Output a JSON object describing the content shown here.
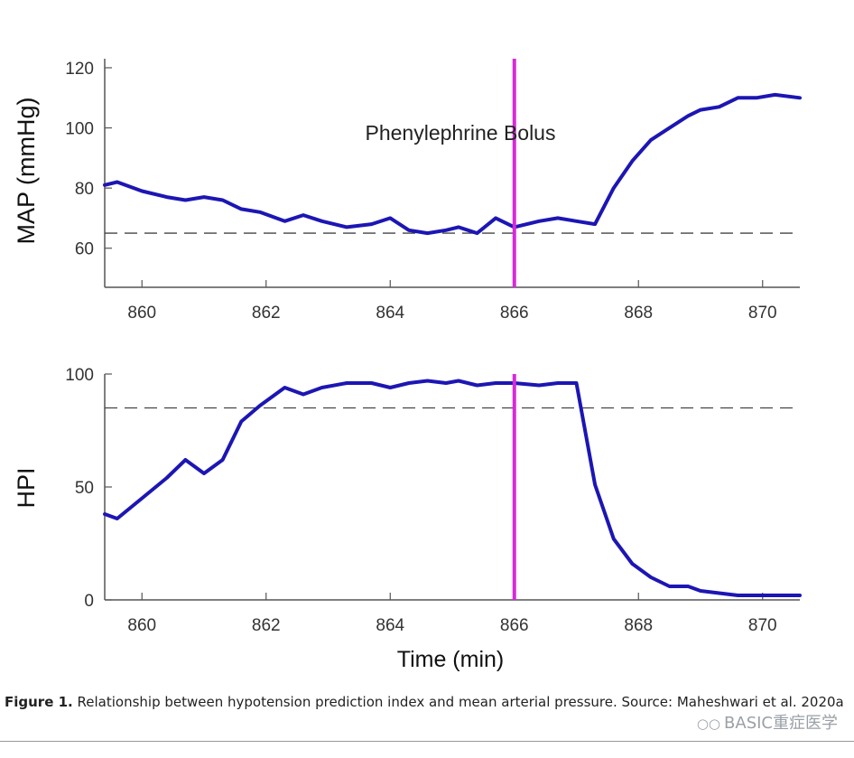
{
  "chart_data": [
    {
      "type": "line",
      "ylabel": "MAP (mmHg)",
      "xlabel": "",
      "xlim": [
        859.4,
        870.6
      ],
      "ylim": [
        47,
        123
      ],
      "xticks": [
        860,
        862,
        864,
        866,
        868,
        870
      ],
      "yticks": [
        60,
        80,
        100,
        120
      ],
      "threshold": 65,
      "vline_x": 866,
      "annotation": "Phenylephrine Bolus",
      "series": [
        {
          "color": "#1c16b4",
          "x": [
            859.4,
            859.6,
            860.0,
            860.4,
            860.7,
            861.0,
            861.3,
            861.6,
            861.9,
            862.3,
            862.6,
            862.9,
            863.3,
            863.7,
            864.0,
            864.3,
            864.6,
            864.9,
            865.1,
            865.4,
            865.7,
            866.0,
            866.4,
            866.7,
            867.0,
            867.3,
            867.6,
            867.9,
            868.2,
            868.5,
            868.8,
            869.0,
            869.3,
            869.6,
            869.9,
            870.2,
            870.6
          ],
          "y": [
            81,
            82,
            79,
            77,
            76,
            77,
            76,
            73,
            72,
            69,
            71,
            69,
            67,
            68,
            70,
            66,
            65,
            66,
            67,
            65,
            70,
            67,
            69,
            70,
            69,
            68,
            80,
            89,
            96,
            100,
            104,
            106,
            107,
            110,
            110,
            111,
            110
          ]
        }
      ]
    },
    {
      "type": "line",
      "ylabel": "HPI",
      "xlabel": "Time (min)",
      "xlim": [
        859.4,
        870.6
      ],
      "ylim": [
        0,
        100
      ],
      "xticks": [
        860,
        862,
        864,
        866,
        868,
        870
      ],
      "yticks": [
        0,
        50,
        100
      ],
      "threshold": 85,
      "vline_x": 866,
      "series": [
        {
          "color": "#1c16b4",
          "x": [
            859.4,
            859.6,
            860.0,
            860.4,
            860.7,
            861.0,
            861.3,
            861.6,
            861.9,
            862.3,
            862.6,
            862.9,
            863.3,
            863.7,
            864.0,
            864.3,
            864.6,
            864.9,
            865.1,
            865.4,
            865.7,
            866.0,
            866.4,
            866.7,
            867.0,
            867.3,
            867.6,
            867.9,
            868.2,
            868.5,
            868.8,
            869.0,
            869.3,
            869.6,
            869.9,
            870.2,
            870.6
          ],
          "y": [
            38,
            36,
            45,
            54,
            62,
            56,
            62,
            79,
            86,
            94,
            91,
            94,
            96,
            96,
            94,
            96,
            97,
            96,
            97,
            95,
            96,
            96,
            95,
            96,
            96,
            51,
            27,
            16,
            10,
            6,
            6,
            4,
            3,
            2,
            2,
            2,
            2
          ]
        }
      ]
    }
  ],
  "caption": {
    "figure_label": "Figure 1.",
    "text": "Relationship between hypotension prediction index and mean arterial pressure. Source: Maheshwari et al. 2020a"
  },
  "watermark": "BASIC重症医学"
}
